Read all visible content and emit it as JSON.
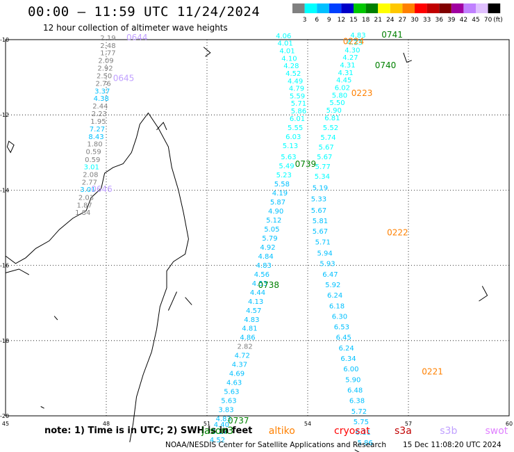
{
  "header": {
    "title": "00:00 – 11:59 UTC 11/24/2024",
    "subtitle": "12 hour collection of altimeter wave heights"
  },
  "legend": {
    "unit": "(ft)",
    "colors": [
      "#808080",
      "#00ffff",
      "#00c0ff",
      "#0040ff",
      "#0000c8",
      "#00c800",
      "#008000",
      "#ffff00",
      "#ffc800",
      "#ff8000",
      "#ff0000",
      "#c00000",
      "#800000",
      "#a000a0",
      "#c080ff",
      "#e0c0ff",
      "#000000"
    ],
    "labels": [
      "3",
      "6",
      "9",
      "12",
      "15",
      "18",
      "21",
      "24",
      "27",
      "30",
      "33",
      "36",
      "39",
      "42",
      "45",
      "70"
    ]
  },
  "map": {
    "lon_ticks": [
      "45",
      "48",
      "51",
      "54",
      "57",
      "60"
    ],
    "lat_ticks": [
      "-10",
      "-12",
      "-14",
      "-16",
      "-18",
      "-20"
    ],
    "lon_range": [
      45,
      60
    ],
    "lat_range": [
      -10,
      -20
    ]
  },
  "labels": [
    {
      "t": "2.19",
      "lon": 47.82,
      "lat": -10.02,
      "c": "#808080"
    },
    {
      "t": "2.48",
      "lon": 47.82,
      "lat": -10.22,
      "c": "#808080"
    },
    {
      "t": "1.77",
      "lon": 47.82,
      "lat": -10.42,
      "c": "#808080"
    },
    {
      "t": "2.09",
      "lon": 47.76,
      "lat": -10.62,
      "c": "#808080"
    },
    {
      "t": "2.92",
      "lon": 47.74,
      "lat": -10.82,
      "c": "#808080"
    },
    {
      "t": "2.50",
      "lon": 47.71,
      "lat": -11.03,
      "c": "#808080"
    },
    {
      "t": "2.76",
      "lon": 47.68,
      "lat": -11.23,
      "c": "#808080"
    },
    {
      "t": "3.37",
      "lon": 47.65,
      "lat": -11.43,
      "c": "#00c0ff"
    },
    {
      "t": "4.38",
      "lon": 47.62,
      "lat": -11.63,
      "c": "#00c0ff"
    },
    {
      "t": "2.44",
      "lon": 47.59,
      "lat": -11.83,
      "c": "#808080"
    },
    {
      "t": "2.23",
      "lon": 47.56,
      "lat": -12.03,
      "c": "#808080"
    },
    {
      "t": "1.95",
      "lon": 47.53,
      "lat": -12.24,
      "c": "#808080"
    },
    {
      "t": "7.27",
      "lon": 47.5,
      "lat": -12.44,
      "c": "#00c0ff"
    },
    {
      "t": "8.43",
      "lon": 47.47,
      "lat": -12.64,
      "c": "#00c0ff"
    },
    {
      "t": "1.80",
      "lon": 47.43,
      "lat": -12.84,
      "c": "#808080"
    },
    {
      "t": "0.59",
      "lon": 47.39,
      "lat": -13.04,
      "c": "#808080"
    },
    {
      "t": "0.59",
      "lon": 47.36,
      "lat": -13.25,
      "c": "#808080"
    },
    {
      "t": "3.01",
      "lon": 47.33,
      "lat": -13.45,
      "c": "#00ffff"
    },
    {
      "t": "2.08",
      "lon": 47.3,
      "lat": -13.65,
      "c": "#808080"
    },
    {
      "t": "2.77",
      "lon": 47.27,
      "lat": -13.85,
      "c": "#808080"
    },
    {
      "t": "3.01",
      "lon": 47.22,
      "lat": -14.05,
      "c": "#00c0ff"
    },
    {
      "t": "2.03",
      "lon": 47.17,
      "lat": -14.26,
      "c": "#808080"
    },
    {
      "t": "1.87",
      "lon": 47.12,
      "lat": -14.46,
      "c": "#808080"
    },
    {
      "t": "1.84",
      "lon": 47.07,
      "lat": -14.66,
      "c": "#808080"
    },
    {
      "t": "0644",
      "lon": 48.6,
      "lat": -10.02,
      "c": "#c0a0ff",
      "big": true
    },
    {
      "t": "0645",
      "lon": 48.2,
      "lat": -11.1,
      "c": "#c0a0ff",
      "big": true
    },
    {
      "t": "0646",
      "lon": 47.55,
      "lat": -14.05,
      "c": "#c0a0ff",
      "big": true
    },
    {
      "t": "4.83",
      "lon": 55.27,
      "lat": -9.94,
      "c": "#00ffff"
    },
    {
      "t": "4.33",
      "lon": 55.17,
      "lat": -10.14,
      "c": "#00ffff"
    },
    {
      "t": "4.30",
      "lon": 55.1,
      "lat": -10.34,
      "c": "#00ffff"
    },
    {
      "t": "4.27",
      "lon": 55.04,
      "lat": -10.54,
      "c": "#00ffff"
    },
    {
      "t": "4.31",
      "lon": 54.96,
      "lat": -10.74,
      "c": "#00ffff"
    },
    {
      "t": "4.31",
      "lon": 54.9,
      "lat": -10.94,
      "c": "#00ffff"
    },
    {
      "t": "4.45",
      "lon": 54.85,
      "lat": -11.14,
      "c": "#00ffff"
    },
    {
      "t": "6.02",
      "lon": 54.8,
      "lat": -11.34,
      "c": "#00ffff"
    },
    {
      "t": "5.80",
      "lon": 54.72,
      "lat": -11.54,
      "c": "#00ffff"
    },
    {
      "t": "5.50",
      "lon": 54.65,
      "lat": -11.74,
      "c": "#00ffff"
    },
    {
      "t": "5.90",
      "lon": 54.55,
      "lat": -11.94,
      "c": "#00ffff"
    },
    {
      "t": "6.81",
      "lon": 54.5,
      "lat": -12.14,
      "c": "#00ffff"
    },
    {
      "t": "5.52",
      "lon": 54.45,
      "lat": -12.4,
      "c": "#00ffff"
    },
    {
      "t": "5.74",
      "lon": 54.38,
      "lat": -12.66,
      "c": "#00ffff"
    },
    {
      "t": "5.67",
      "lon": 54.32,
      "lat": -12.92,
      "c": "#00ffff"
    },
    {
      "t": "5.67",
      "lon": 54.27,
      "lat": -13.18,
      "c": "#00ffff"
    },
    {
      "t": "5.77",
      "lon": 54.22,
      "lat": -13.44,
      "c": "#00ffff"
    },
    {
      "t": "5.34",
      "lon": 54.2,
      "lat": -13.7,
      "c": "#00ffff"
    },
    {
      "t": "5.19",
      "lon": 54.14,
      "lat": -14.0,
      "c": "#00c0ff"
    },
    {
      "t": "5.33",
      "lon": 54.1,
      "lat": -14.3,
      "c": "#00c0ff"
    },
    {
      "t": "5.67",
      "lon": 54.1,
      "lat": -14.6,
      "c": "#00c0ff"
    },
    {
      "t": "5.81",
      "lon": 54.14,
      "lat": -14.88,
      "c": "#00c0ff"
    },
    {
      "t": "5.67",
      "lon": 54.14,
      "lat": -15.16,
      "c": "#00c0ff"
    },
    {
      "t": "5.71",
      "lon": 54.22,
      "lat": -15.44,
      "c": "#00c0ff"
    },
    {
      "t": "5.94",
      "lon": 54.28,
      "lat": -15.74,
      "c": "#00c0ff"
    },
    {
      "t": "5.93",
      "lon": 54.36,
      "lat": -16.02,
      "c": "#00c0ff"
    },
    {
      "t": "6.47",
      "lon": 54.44,
      "lat": -16.3,
      "c": "#00c0ff"
    },
    {
      "t": "5.92",
      "lon": 54.52,
      "lat": -16.58,
      "c": "#00c0ff"
    },
    {
      "t": "6.24",
      "lon": 54.58,
      "lat": -16.86,
      "c": "#00c0ff"
    },
    {
      "t": "6.18",
      "lon": 54.64,
      "lat": -17.14,
      "c": "#00c0ff"
    },
    {
      "t": "6.30",
      "lon": 54.72,
      "lat": -17.42,
      "c": "#00c0ff"
    },
    {
      "t": "6.53",
      "lon": 54.78,
      "lat": -17.7,
      "c": "#00c0ff"
    },
    {
      "t": "6.45",
      "lon": 54.84,
      "lat": -17.98,
      "c": "#00c0ff"
    },
    {
      "t": "6.24",
      "lon": 54.92,
      "lat": -18.26,
      "c": "#00c0ff"
    },
    {
      "t": "6.34",
      "lon": 54.98,
      "lat": -18.54,
      "c": "#00c0ff"
    },
    {
      "t": "6.00",
      "lon": 55.06,
      "lat": -18.82,
      "c": "#00c0ff"
    },
    {
      "t": "5.90",
      "lon": 55.12,
      "lat": -19.1,
      "c": "#00c0ff"
    },
    {
      "t": "6.48",
      "lon": 55.18,
      "lat": -19.38,
      "c": "#00c0ff"
    },
    {
      "t": "6.38",
      "lon": 55.24,
      "lat": -19.66,
      "c": "#00c0ff"
    },
    {
      "t": "5.72",
      "lon": 55.3,
      "lat": -19.94,
      "c": "#00c0ff"
    },
    {
      "t": "5.75",
      "lon": 55.36,
      "lat": -20.22,
      "c": "#00c0ff"
    },
    {
      "t": "6.11",
      "lon": 55.42,
      "lat": -20.5,
      "c": "#00c0ff"
    },
    {
      "t": "5.86",
      "lon": 55.48,
      "lat": -20.78,
      "c": "#00c0ff"
    },
    {
      "t": "0741",
      "lon": 56.2,
      "lat": -9.94,
      "c": "#008000",
      "big": true
    },
    {
      "t": "0740",
      "lon": 56.0,
      "lat": -10.76,
      "c": "#008000",
      "big": true
    },
    {
      "t": "0224",
      "lon": 55.05,
      "lat": -10.12,
      "c": "#ff8000",
      "big": true
    },
    {
      "t": "0223",
      "lon": 55.3,
      "lat": -11.5,
      "c": "#ff8000",
      "big": true
    },
    {
      "t": "0222",
      "lon": 56.36,
      "lat": -15.2,
      "c": "#ff8000",
      "big": true
    },
    {
      "t": "0221",
      "lon": 57.4,
      "lat": -18.9,
      "c": "#ff8000",
      "big": true
    },
    {
      "t": "4.06",
      "lon": 53.05,
      "lat": -9.96,
      "c": "#00ffff"
    },
    {
      "t": "4.01",
      "lon": 53.1,
      "lat": -10.16,
      "c": "#00ffff"
    },
    {
      "t": "4.01",
      "lon": 53.16,
      "lat": -10.36,
      "c": "#00ffff"
    },
    {
      "t": "4.10",
      "lon": 53.22,
      "lat": -10.56,
      "c": "#00ffff"
    },
    {
      "t": "4.28",
      "lon": 53.28,
      "lat": -10.76,
      "c": "#00ffff"
    },
    {
      "t": "4.52",
      "lon": 53.34,
      "lat": -10.96,
      "c": "#00ffff"
    },
    {
      "t": "4.49",
      "lon": 53.4,
      "lat": -11.16,
      "c": "#00ffff"
    },
    {
      "t": "4.79",
      "lon": 53.44,
      "lat": -11.36,
      "c": "#00ffff"
    },
    {
      "t": "5.59",
      "lon": 53.46,
      "lat": -11.56,
      "c": "#00ffff"
    },
    {
      "t": "5.71",
      "lon": 53.5,
      "lat": -11.76,
      "c": "#00ffff"
    },
    {
      "t": "5.86",
      "lon": 53.5,
      "lat": -11.96,
      "c": "#00ffff"
    },
    {
      "t": "6.01",
      "lon": 53.46,
      "lat": -12.16,
      "c": "#00ffff"
    },
    {
      "t": "5.55",
      "lon": 53.4,
      "lat": -12.4,
      "c": "#00ffff"
    },
    {
      "t": "6.03",
      "lon": 53.34,
      "lat": -12.64,
      "c": "#00ffff"
    },
    {
      "t": "5.13",
      "lon": 53.25,
      "lat": -12.88,
      "c": "#00ffff"
    },
    {
      "t": "5.63",
      "lon": 53.2,
      "lat": -13.18,
      "c": "#00ffff"
    },
    {
      "t": "5.49",
      "lon": 53.14,
      "lat": -13.42,
      "c": "#00ffff"
    },
    {
      "t": "5.23",
      "lon": 53.06,
      "lat": -13.66,
      "c": "#00ffff"
    },
    {
      "t": "5.58",
      "lon": 53.0,
      "lat": -13.9,
      "c": "#00c0ff"
    },
    {
      "t": "4.19",
      "lon": 52.94,
      "lat": -14.14,
      "c": "#00c0ff"
    },
    {
      "t": "5.87",
      "lon": 52.88,
      "lat": -14.38,
      "c": "#00c0ff"
    },
    {
      "t": "4.90",
      "lon": 52.82,
      "lat": -14.62,
      "c": "#00c0ff"
    },
    {
      "t": "5.12",
      "lon": 52.76,
      "lat": -14.86,
      "c": "#00c0ff"
    },
    {
      "t": "5.05",
      "lon": 52.7,
      "lat": -15.1,
      "c": "#00c0ff"
    },
    {
      "t": "5.79",
      "lon": 52.64,
      "lat": -15.34,
      "c": "#00c0ff"
    },
    {
      "t": "4.92",
      "lon": 52.58,
      "lat": -15.58,
      "c": "#00c0ff"
    },
    {
      "t": "4.84",
      "lon": 52.52,
      "lat": -15.82,
      "c": "#00c0ff"
    },
    {
      "t": "4.83",
      "lon": 52.46,
      "lat": -16.06,
      "c": "#00c0ff"
    },
    {
      "t": "4.56",
      "lon": 52.4,
      "lat": -16.3,
      "c": "#00c0ff"
    },
    {
      "t": "4.53",
      "lon": 52.34,
      "lat": -16.54,
      "c": "#00c0ff"
    },
    {
      "t": "4.44",
      "lon": 52.28,
      "lat": -16.78,
      "c": "#00c0ff"
    },
    {
      "t": "4.13",
      "lon": 52.22,
      "lat": -17.02,
      "c": "#00c0ff"
    },
    {
      "t": "4.57",
      "lon": 52.16,
      "lat": -17.26,
      "c": "#00c0ff"
    },
    {
      "t": "4.83",
      "lon": 52.1,
      "lat": -17.5,
      "c": "#00c0ff"
    },
    {
      "t": "4.81",
      "lon": 52.04,
      "lat": -17.74,
      "c": "#00c0ff"
    },
    {
      "t": "4.86",
      "lon": 51.98,
      "lat": -17.98,
      "c": "#00c0ff"
    },
    {
      "t": "2.82",
      "lon": 51.9,
      "lat": -18.22,
      "c": "#808080"
    },
    {
      "t": "4.72",
      "lon": 51.82,
      "lat": -18.46,
      "c": "#00c0ff"
    },
    {
      "t": "4.37",
      "lon": 51.74,
      "lat": -18.7,
      "c": "#00c0ff"
    },
    {
      "t": "4.69",
      "lon": 51.66,
      "lat": -18.94,
      "c": "#00c0ff"
    },
    {
      "t": "4.63",
      "lon": 51.58,
      "lat": -19.18,
      "c": "#00c0ff"
    },
    {
      "t": "5.63",
      "lon": 51.5,
      "lat": -19.42,
      "c": "#00c0ff"
    },
    {
      "t": "5.63",
      "lon": 51.42,
      "lat": -19.66,
      "c": "#00c0ff"
    },
    {
      "t": "3.83",
      "lon": 51.34,
      "lat": -19.9,
      "c": "#00c0ff"
    },
    {
      "t": "4.83",
      "lon": 51.26,
      "lat": -20.14,
      "c": "#00c0ff"
    },
    {
      "t": "4.40",
      "lon": 51.2,
      "lat": -20.3,
      "c": "#00c0ff"
    },
    {
      "t": "5.17",
      "lon": 51.14,
      "lat": -20.48,
      "c": "#00c0ff"
    },
    {
      "t": "4.52",
      "lon": 51.08,
      "lat": -20.7,
      "c": "#00c0ff"
    },
    {
      "t": "0739",
      "lon": 53.62,
      "lat": -13.38,
      "c": "#008000",
      "big": true
    },
    {
      "t": "0738",
      "lon": 52.52,
      "lat": -16.6,
      "c": "#008000",
      "big": true
    },
    {
      "t": "0737",
      "lon": 51.62,
      "lat": -20.2,
      "c": "#008000",
      "big": true
    }
  ],
  "footer": {
    "note": "note:  1) Time is in UTC; 2) SWH is in feet",
    "satellites": [
      {
        "name": "jason3",
        "color": "#008000",
        "lon": 51.25
      },
      {
        "name": "altiko",
        "color": "#ff8000",
        "lon": 53.25
      },
      {
        "name": "cryosat",
        "color": "#ff0000",
        "lon": 55.2
      },
      {
        "name": "s3a",
        "color": "#c00000",
        "lon": 57.0
      },
      {
        "name": "s3b",
        "color": "#c0a0ff",
        "lon": 58.35
      },
      {
        "name": "swot",
        "color": "#e080ff",
        "lon": 59.7
      }
    ],
    "credit": "NOAA/NESDIS Center for Satellite Applications and Research",
    "date": "15 Dec 11:08:20 UTC 2024"
  }
}
